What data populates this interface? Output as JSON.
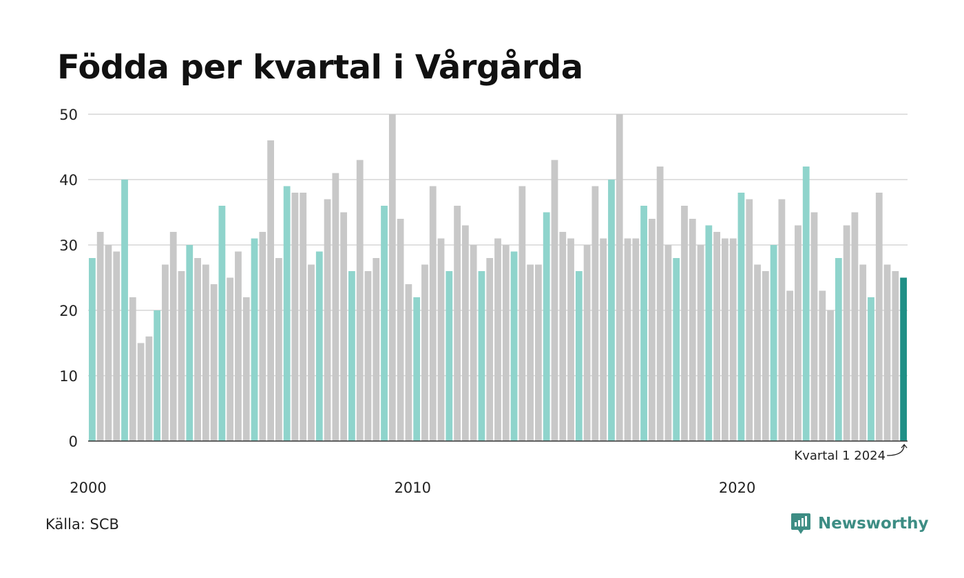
{
  "chart_data": {
    "type": "bar",
    "title": "Födda per kvartal i Vårgårda",
    "xlabel": "",
    "ylabel": "",
    "ylim": [
      0,
      50
    ],
    "y_ticks": [
      0,
      10,
      20,
      30,
      40,
      50
    ],
    "x_tick_labels": [
      {
        "label": "2000",
        "year": 2000
      },
      {
        "label": "2010",
        "year": 2010
      },
      {
        "label": "2020",
        "year": 2020
      }
    ],
    "grid": "horizontal",
    "colors": {
      "first_quarter": "#8fd4cc",
      "other_quarter": "#c8c8c8",
      "latest": "#1f8f86",
      "grid": "#e0e0e0",
      "axis": "#333333"
    },
    "start": {
      "year": 2000,
      "quarter": 1
    },
    "values": [
      28,
      32,
      30,
      29,
      40,
      22,
      15,
      16,
      20,
      27,
      32,
      26,
      30,
      28,
      27,
      24,
      36,
      25,
      29,
      22,
      31,
      32,
      46,
      28,
      39,
      38,
      38,
      27,
      29,
      37,
      41,
      35,
      26,
      43,
      26,
      28,
      36,
      50,
      34,
      24,
      22,
      27,
      39,
      31,
      26,
      36,
      33,
      30,
      26,
      28,
      31,
      30,
      29,
      39,
      27,
      27,
      35,
      43,
      32,
      31,
      26,
      30,
      39,
      31,
      40,
      50,
      31,
      31,
      36,
      34,
      42,
      30,
      28,
      36,
      34,
      30,
      33,
      32,
      31,
      31,
      38,
      37,
      27,
      26,
      30,
      37,
      23,
      33,
      42,
      35,
      23,
      20,
      28,
      33,
      35,
      27,
      22,
      38,
      27,
      26,
      25
    ],
    "annotation": "Kvartal 1 2024"
  },
  "source": "Källa: SCB",
  "logo": {
    "text": "Newsworthy"
  }
}
